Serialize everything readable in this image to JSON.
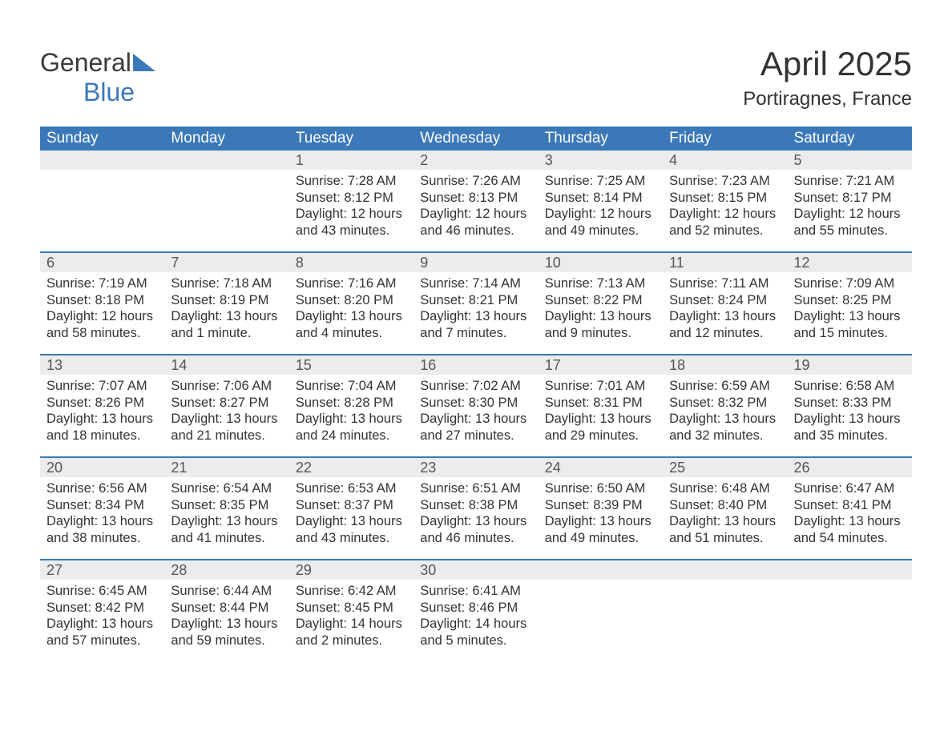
{
  "brand": {
    "part1": "General",
    "part2": "Blue",
    "logo_color1": "#3a3a3a",
    "logo_color2": "#3b78b8"
  },
  "header": {
    "month": "April 2025",
    "location": "Portiragnes, France"
  },
  "style": {
    "header_bg": "#3b78b8",
    "header_text": "#ffffff",
    "daynum_bg": "#ececec",
    "border_color": "#3b78b8",
    "text_color": "#333333",
    "body_font_size": 16.5,
    "header_font_size": 19,
    "month_font_size": 42,
    "loc_font_size": 24
  },
  "day_labels": [
    "Sunday",
    "Monday",
    "Tuesday",
    "Wednesday",
    "Thursday",
    "Friday",
    "Saturday"
  ],
  "weeks": [
    [
      {
        "n": "",
        "sr": "",
        "ss": "",
        "dl": ""
      },
      {
        "n": "",
        "sr": "",
        "ss": "",
        "dl": ""
      },
      {
        "n": "1",
        "sr": "Sunrise: 7:28 AM",
        "ss": "Sunset: 8:12 PM",
        "dl": "Daylight: 12 hours and 43 minutes."
      },
      {
        "n": "2",
        "sr": "Sunrise: 7:26 AM",
        "ss": "Sunset: 8:13 PM",
        "dl": "Daylight: 12 hours and 46 minutes."
      },
      {
        "n": "3",
        "sr": "Sunrise: 7:25 AM",
        "ss": "Sunset: 8:14 PM",
        "dl": "Daylight: 12 hours and 49 minutes."
      },
      {
        "n": "4",
        "sr": "Sunrise: 7:23 AM",
        "ss": "Sunset: 8:15 PM",
        "dl": "Daylight: 12 hours and 52 minutes."
      },
      {
        "n": "5",
        "sr": "Sunrise: 7:21 AM",
        "ss": "Sunset: 8:17 PM",
        "dl": "Daylight: 12 hours and 55 minutes."
      }
    ],
    [
      {
        "n": "6",
        "sr": "Sunrise: 7:19 AM",
        "ss": "Sunset: 8:18 PM",
        "dl": "Daylight: 12 hours and 58 minutes."
      },
      {
        "n": "7",
        "sr": "Sunrise: 7:18 AM",
        "ss": "Sunset: 8:19 PM",
        "dl": "Daylight: 13 hours and 1 minute."
      },
      {
        "n": "8",
        "sr": "Sunrise: 7:16 AM",
        "ss": "Sunset: 8:20 PM",
        "dl": "Daylight: 13 hours and 4 minutes."
      },
      {
        "n": "9",
        "sr": "Sunrise: 7:14 AM",
        "ss": "Sunset: 8:21 PM",
        "dl": "Daylight: 13 hours and 7 minutes."
      },
      {
        "n": "10",
        "sr": "Sunrise: 7:13 AM",
        "ss": "Sunset: 8:22 PM",
        "dl": "Daylight: 13 hours and 9 minutes."
      },
      {
        "n": "11",
        "sr": "Sunrise: 7:11 AM",
        "ss": "Sunset: 8:24 PM",
        "dl": "Daylight: 13 hours and 12 minutes."
      },
      {
        "n": "12",
        "sr": "Sunrise: 7:09 AM",
        "ss": "Sunset: 8:25 PM",
        "dl": "Daylight: 13 hours and 15 minutes."
      }
    ],
    [
      {
        "n": "13",
        "sr": "Sunrise: 7:07 AM",
        "ss": "Sunset: 8:26 PM",
        "dl": "Daylight: 13 hours and 18 minutes."
      },
      {
        "n": "14",
        "sr": "Sunrise: 7:06 AM",
        "ss": "Sunset: 8:27 PM",
        "dl": "Daylight: 13 hours and 21 minutes."
      },
      {
        "n": "15",
        "sr": "Sunrise: 7:04 AM",
        "ss": "Sunset: 8:28 PM",
        "dl": "Daylight: 13 hours and 24 minutes."
      },
      {
        "n": "16",
        "sr": "Sunrise: 7:02 AM",
        "ss": "Sunset: 8:30 PM",
        "dl": "Daylight: 13 hours and 27 minutes."
      },
      {
        "n": "17",
        "sr": "Sunrise: 7:01 AM",
        "ss": "Sunset: 8:31 PM",
        "dl": "Daylight: 13 hours and 29 minutes."
      },
      {
        "n": "18",
        "sr": "Sunrise: 6:59 AM",
        "ss": "Sunset: 8:32 PM",
        "dl": "Daylight: 13 hours and 32 minutes."
      },
      {
        "n": "19",
        "sr": "Sunrise: 6:58 AM",
        "ss": "Sunset: 8:33 PM",
        "dl": "Daylight: 13 hours and 35 minutes."
      }
    ],
    [
      {
        "n": "20",
        "sr": "Sunrise: 6:56 AM",
        "ss": "Sunset: 8:34 PM",
        "dl": "Daylight: 13 hours and 38 minutes."
      },
      {
        "n": "21",
        "sr": "Sunrise: 6:54 AM",
        "ss": "Sunset: 8:35 PM",
        "dl": "Daylight: 13 hours and 41 minutes."
      },
      {
        "n": "22",
        "sr": "Sunrise: 6:53 AM",
        "ss": "Sunset: 8:37 PM",
        "dl": "Daylight: 13 hours and 43 minutes."
      },
      {
        "n": "23",
        "sr": "Sunrise: 6:51 AM",
        "ss": "Sunset: 8:38 PM",
        "dl": "Daylight: 13 hours and 46 minutes."
      },
      {
        "n": "24",
        "sr": "Sunrise: 6:50 AM",
        "ss": "Sunset: 8:39 PM",
        "dl": "Daylight: 13 hours and 49 minutes."
      },
      {
        "n": "25",
        "sr": "Sunrise: 6:48 AM",
        "ss": "Sunset: 8:40 PM",
        "dl": "Daylight: 13 hours and 51 minutes."
      },
      {
        "n": "26",
        "sr": "Sunrise: 6:47 AM",
        "ss": "Sunset: 8:41 PM",
        "dl": "Daylight: 13 hours and 54 minutes."
      }
    ],
    [
      {
        "n": "27",
        "sr": "Sunrise: 6:45 AM",
        "ss": "Sunset: 8:42 PM",
        "dl": "Daylight: 13 hours and 57 minutes."
      },
      {
        "n": "28",
        "sr": "Sunrise: 6:44 AM",
        "ss": "Sunset: 8:44 PM",
        "dl": "Daylight: 13 hours and 59 minutes."
      },
      {
        "n": "29",
        "sr": "Sunrise: 6:42 AM",
        "ss": "Sunset: 8:45 PM",
        "dl": "Daylight: 14 hours and 2 minutes."
      },
      {
        "n": "30",
        "sr": "Sunrise: 6:41 AM",
        "ss": "Sunset: 8:46 PM",
        "dl": "Daylight: 14 hours and 5 minutes."
      },
      {
        "n": "",
        "sr": "",
        "ss": "",
        "dl": ""
      },
      {
        "n": "",
        "sr": "",
        "ss": "",
        "dl": ""
      },
      {
        "n": "",
        "sr": "",
        "ss": "",
        "dl": ""
      }
    ]
  ]
}
